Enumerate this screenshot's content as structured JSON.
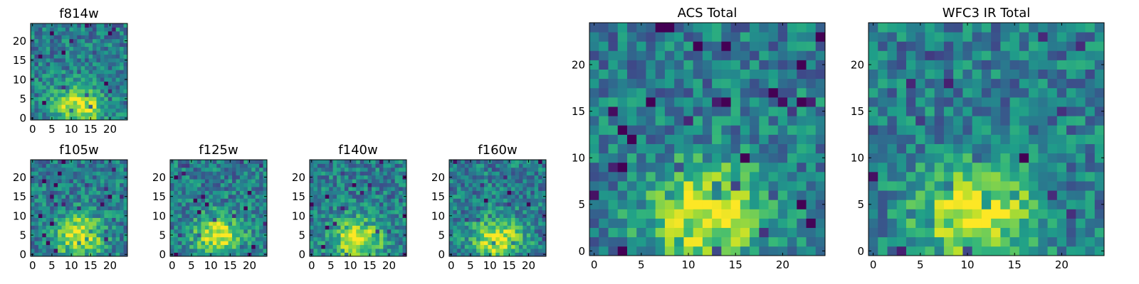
{
  "chart_data": [
    {
      "type": "heatmap",
      "title": "f814w",
      "xlim": [
        0,
        24
      ],
      "ylim": [
        0,
        24
      ],
      "x_ticks": [
        0,
        5,
        10,
        15,
        20
      ],
      "y_ticks": [
        0,
        5,
        10,
        15,
        20
      ],
      "grid": false,
      "colormap": "viridis",
      "source_center": [
        12,
        3
      ],
      "seed": 11
    },
    {
      "type": "heatmap",
      "title": "f105w",
      "xlim": [
        0,
        24
      ],
      "ylim": [
        0,
        24
      ],
      "x_ticks": [
        0,
        5,
        10,
        15,
        20
      ],
      "y_ticks": [
        0,
        5,
        10,
        15,
        20
      ],
      "grid": false,
      "colormap": "viridis",
      "source_center": [
        12,
        5
      ],
      "seed": 23
    },
    {
      "type": "heatmap",
      "title": "f125w",
      "xlim": [
        0,
        24
      ],
      "ylim": [
        0,
        24
      ],
      "x_ticks": [
        0,
        5,
        10,
        15,
        20
      ],
      "y_ticks": [
        0,
        5,
        10,
        15,
        20
      ],
      "grid": false,
      "colormap": "viridis",
      "source_center": [
        12,
        5
      ],
      "seed": 37
    },
    {
      "type": "heatmap",
      "title": "f140w",
      "xlim": [
        0,
        24
      ],
      "ylim": [
        0,
        24
      ],
      "x_ticks": [
        0,
        5,
        10,
        15,
        20
      ],
      "y_ticks": [
        0,
        5,
        10,
        15,
        20
      ],
      "grid": false,
      "colormap": "viridis",
      "source_center": [
        12,
        4
      ],
      "seed": 41
    },
    {
      "type": "heatmap",
      "title": "f160w",
      "xlim": [
        0,
        24
      ],
      "ylim": [
        0,
        24
      ],
      "x_ticks": [
        0,
        5,
        10,
        15,
        20
      ],
      "y_ticks": [
        0,
        5,
        10,
        15,
        20
      ],
      "grid": false,
      "colormap": "viridis",
      "source_center": [
        12,
        4
      ],
      "seed": 53
    },
    {
      "type": "heatmap",
      "title": "ACS Total",
      "xlim": [
        0,
        24
      ],
      "ylim": [
        0,
        24
      ],
      "x_ticks": [
        0,
        5,
        10,
        15,
        20
      ],
      "y_ticks": [
        0,
        5,
        10,
        15,
        20
      ],
      "grid": false,
      "colormap": "viridis",
      "source_center": [
        12,
        4
      ],
      "seed": 67
    },
    {
      "type": "heatmap",
      "title": "WFC3 IR Total",
      "xlim": [
        0,
        24
      ],
      "ylim": [
        0,
        24
      ],
      "x_ticks": [
        0,
        5,
        10,
        15,
        20
      ],
      "y_ticks": [
        0,
        5,
        10,
        15,
        20
      ],
      "grid": false,
      "colormap": "viridis",
      "source_center": [
        11,
        4
      ],
      "seed": 79
    }
  ]
}
